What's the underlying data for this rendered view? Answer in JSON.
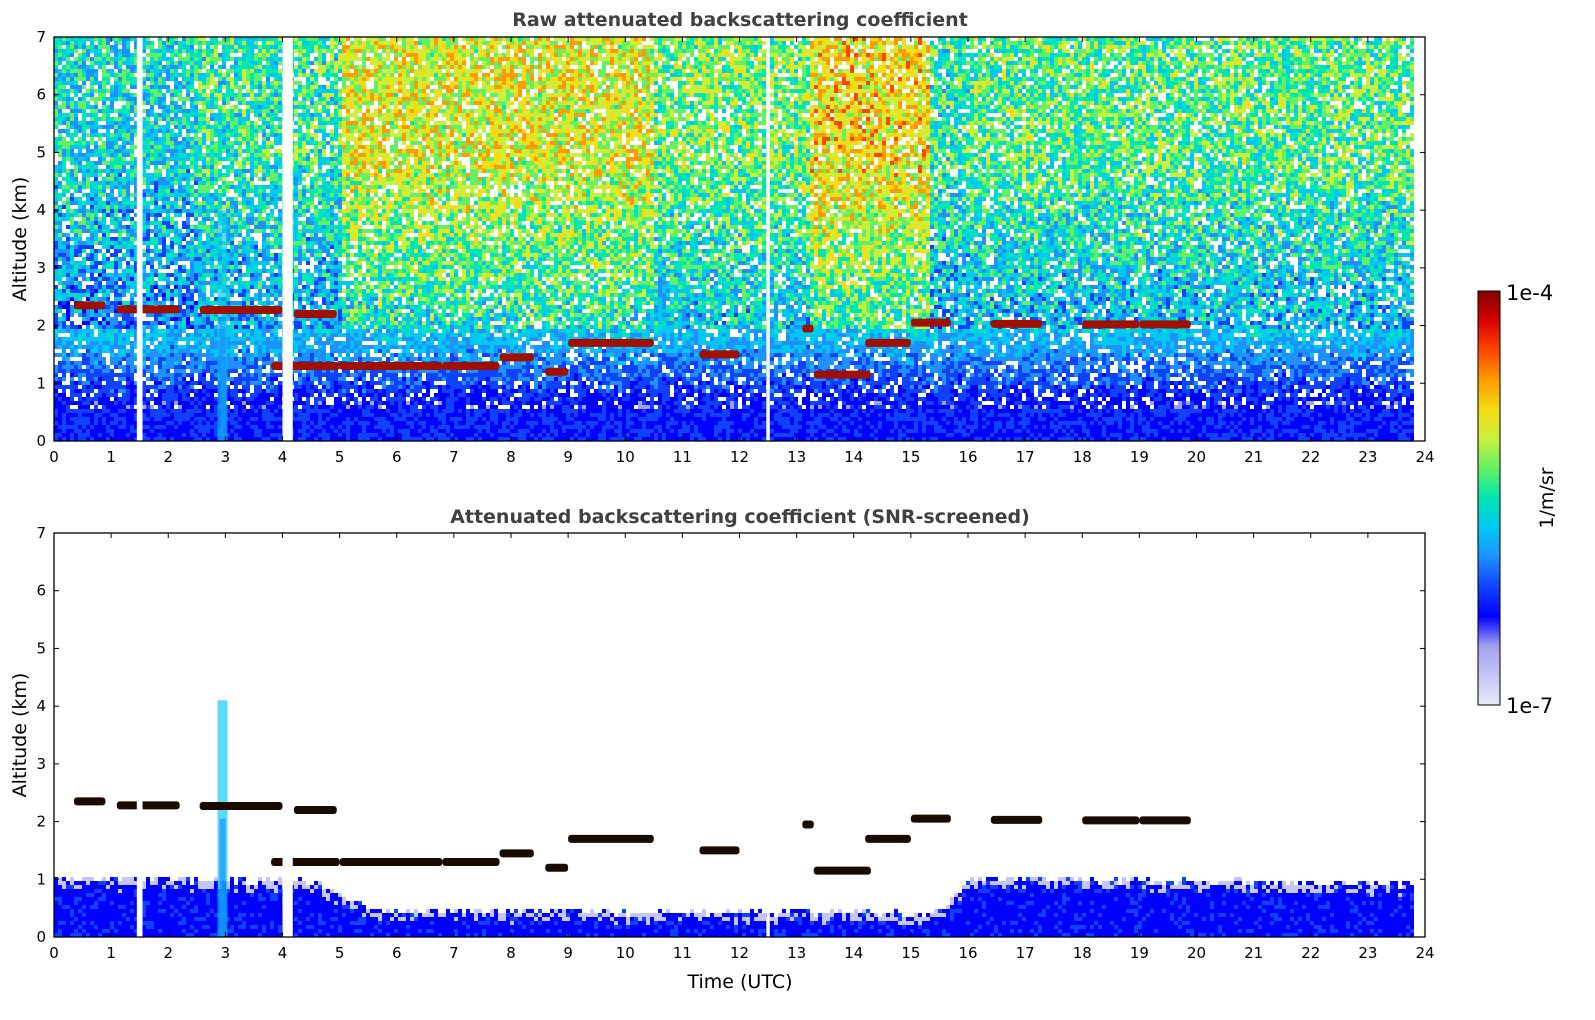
{
  "chart_data": [
    {
      "type": "heatmap",
      "title": "Raw attenuated backscattering coefficient",
      "xlabel": "",
      "ylabel": "Altitude (km)",
      "xlim": [
        0,
        24
      ],
      "ylim": [
        0,
        7
      ],
      "xticks": [
        "0",
        "1",
        "2",
        "3",
        "4",
        "5",
        "6",
        "7",
        "8",
        "9",
        "10",
        "11",
        "12",
        "13",
        "14",
        "15",
        "16",
        "17",
        "18",
        "19",
        "20",
        "21",
        "22",
        "23",
        "24"
      ],
      "yticks": [
        "0",
        "1",
        "2",
        "3",
        "4",
        "5",
        "6",
        "7"
      ],
      "data_gaps_utc": [
        [
          1.45,
          1.55
        ],
        [
          4.0,
          4.18
        ],
        [
          12.47,
          12.53
        ]
      ],
      "clear_air_signal": [
        {
          "x": [
            0,
            2.5
          ],
          "note_level": "low"
        },
        {
          "x": [
            5,
            10.5
          ],
          "level": "high"
        },
        {
          "x": [
            13.2,
            15.3
          ],
          "level": "highest"
        },
        {
          "x": [
            16,
            23.8
          ],
          "level": "medium"
        }
      ],
      "cloud_layers_km": [
        {
          "x": [
            0.35,
            0.9
          ],
          "y": 2.35
        },
        {
          "x": [
            1.1,
            2.2
          ],
          "y": 2.28
        },
        {
          "x": [
            2.55,
            4.0
          ],
          "y": 2.27
        },
        {
          "x": [
            4.2,
            4.95
          ],
          "y": 2.2
        },
        {
          "x": [
            3.8,
            5.0
          ],
          "y": 1.3
        },
        {
          "x": [
            5.0,
            6.8
          ],
          "y": 1.3
        },
        {
          "x": [
            6.8,
            7.8
          ],
          "y": 1.3
        },
        {
          "x": [
            7.8,
            8.4
          ],
          "y": 1.45
        },
        {
          "x": [
            8.6,
            9.0
          ],
          "y": 1.2
        },
        {
          "x": [
            9.0,
            10.5
          ],
          "y": 1.7
        },
        {
          "x": [
            11.3,
            12.0
          ],
          "y": 1.5
        },
        {
          "x": [
            13.1,
            13.3
          ],
          "y": 1.95
        },
        {
          "x": [
            13.3,
            14.3
          ],
          "y": 1.15
        },
        {
          "x": [
            14.2,
            15.0
          ],
          "y": 1.7
        },
        {
          "x": [
            15.0,
            15.7
          ],
          "y": 2.05
        },
        {
          "x": [
            16.4,
            17.3
          ],
          "y": 2.03
        },
        {
          "x": [
            18.0,
            19.0
          ],
          "y": 2.02
        },
        {
          "x": [
            19.0,
            19.9
          ],
          "y": 2.02
        }
      ],
      "aerosol_plume": {
        "x": 2.95,
        "top_km": 4.0
      }
    },
    {
      "type": "heatmap",
      "title": "Attenuated backscattering coefficient (SNR-screened)",
      "xlabel": "Time (UTC)",
      "ylabel": "Altitude (km)",
      "xlim": [
        0,
        24
      ],
      "ylim": [
        0,
        7
      ],
      "xticks": [
        "0",
        "1",
        "2",
        "3",
        "4",
        "5",
        "6",
        "7",
        "8",
        "9",
        "10",
        "11",
        "12",
        "13",
        "14",
        "15",
        "16",
        "17",
        "18",
        "19",
        "20",
        "21",
        "22",
        "23",
        "24"
      ],
      "yticks": [
        "0",
        "1",
        "2",
        "3",
        "4",
        "5",
        "6",
        "7"
      ],
      "boundary_layer_top_km": [
        {
          "x": 0,
          "y": 1.05
        },
        {
          "x": 4.5,
          "y": 1.0
        },
        {
          "x": 5.5,
          "y": 0.5
        },
        {
          "x": 10.5,
          "y": 0.45
        },
        {
          "x": 13.0,
          "y": 0.45
        },
        {
          "x": 15.5,
          "y": 0.45
        },
        {
          "x": 16.0,
          "y": 1.05
        },
        {
          "x": 23.8,
          "y": 0.95
        }
      ],
      "aerosol_plume": {
        "x": 2.95,
        "top_km": 4.1
      }
    }
  ],
  "colorbar": {
    "min_label": "1e-7",
    "max_label": "1e-4",
    "unit_label": "1/m/sr",
    "colormap": [
      "#e8e8fb",
      "#c6c6f5",
      "#a0a0f0",
      "#0000ff",
      "#0f42ff",
      "#1e90ff",
      "#00c8f0",
      "#00e6b4",
      "#64f064",
      "#c8f03c",
      "#f5dc14",
      "#ff9b00",
      "#ff4600",
      "#d70000",
      "#820000"
    ]
  },
  "colors": {
    "title_gray": "#404040",
    "cloud_raw": "#a01000",
    "cloud_screened": "#1a0b00",
    "missing": "#ffffff"
  }
}
